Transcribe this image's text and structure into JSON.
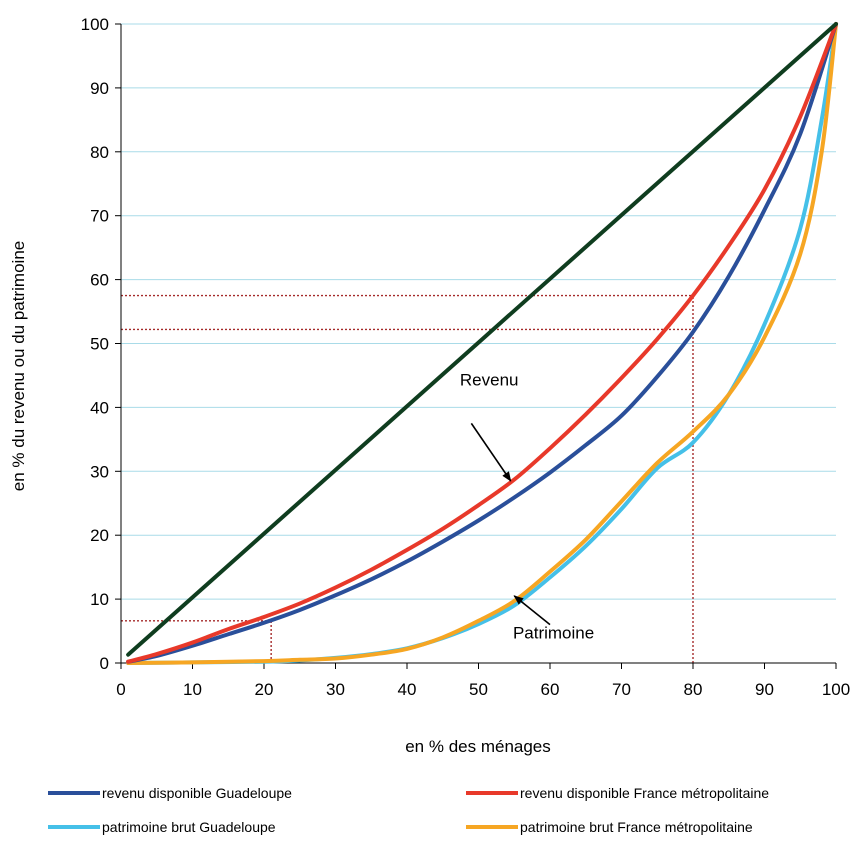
{
  "chart_data": {
    "type": "line",
    "title": "",
    "xlabel": "en % des ménages",
    "ylabel": "en % du revenu ou du patrimoine",
    "xlim": [
      0,
      100
    ],
    "ylim": [
      0,
      100
    ],
    "xticks": [
      0,
      10,
      20,
      30,
      40,
      50,
      60,
      70,
      80,
      90,
      100
    ],
    "yticks": [
      0,
      10,
      20,
      30,
      40,
      50,
      60,
      70,
      80,
      90,
      100
    ],
    "grid": "horizontal",
    "legend_position": "bottom",
    "series": [
      {
        "name": "",
        "color": "#0f3d1f",
        "x": [
          1,
          100
        ],
        "y": [
          1.3,
          100
        ]
      },
      {
        "name": "revenu disponible Guadeloupe",
        "color": "#2a4f9a",
        "x": [
          1,
          5,
          10,
          15,
          20,
          25,
          30,
          35,
          40,
          45,
          50,
          55,
          60,
          65,
          70,
          75,
          80,
          85,
          90,
          95,
          100
        ],
        "y": [
          0.2,
          1.1,
          2.7,
          4.5,
          6.3,
          8.3,
          10.6,
          13.1,
          15.9,
          19.0,
          22.3,
          25.9,
          29.8,
          34.1,
          38.7,
          44.8,
          51.8,
          60.5,
          70.9,
          82.8,
          100
        ]
      },
      {
        "name": "revenu disponible France métropolitaine",
        "color": "#e8392a",
        "x": [
          1,
          5,
          10,
          15,
          20,
          25,
          30,
          35,
          40,
          45,
          50,
          55,
          60,
          65,
          70,
          75,
          80,
          85,
          90,
          95,
          100
        ],
        "y": [
          0.2,
          1.4,
          3.2,
          5.3,
          7.2,
          9.3,
          11.8,
          14.6,
          17.7,
          21.0,
          24.7,
          28.7,
          33.6,
          38.9,
          44.6,
          50.7,
          57.5,
          65.3,
          74.1,
          85.5,
          100
        ]
      },
      {
        "name": "patrimoine brut Guadeloupe",
        "color": "#45c0e8",
        "x": [
          1,
          10,
          20,
          25,
          30,
          35,
          40,
          45,
          50,
          55,
          60,
          65,
          70,
          75,
          80,
          85,
          90,
          95,
          98,
          100
        ],
        "y": [
          0,
          0.1,
          0.2,
          0.4,
          0.8,
          1.4,
          2.3,
          3.9,
          6.1,
          9.0,
          13.4,
          18.3,
          24.1,
          30.5,
          34.5,
          42.0,
          53.0,
          68.0,
          85.0,
          100
        ]
      },
      {
        "name": "patrimoine brut France métropolitaine",
        "color": "#f6a623",
        "x": [
          1,
          10,
          20,
          25,
          30,
          35,
          40,
          45,
          50,
          55,
          60,
          65,
          70,
          75,
          80,
          85,
          90,
          95,
          98,
          100
        ],
        "y": [
          0,
          0.1,
          0.3,
          0.5,
          0.7,
          1.3,
          2.2,
          4.0,
          6.6,
          9.7,
          14.3,
          19.3,
          25.3,
          31.3,
          36.2,
          42.0,
          51.0,
          64.0,
          80.0,
          100
        ]
      }
    ],
    "reference_lines": [
      {
        "type": "h",
        "y": 57.5,
        "x_from": 0,
        "x_to": 80
      },
      {
        "type": "h",
        "y": 52.2,
        "x_from": 0,
        "x_to": 80
      },
      {
        "type": "h",
        "y": 6.6,
        "x_from": 0,
        "x_to": 21
      },
      {
        "type": "v",
        "x": 80,
        "y_from": 0,
        "y_to": 57.5
      },
      {
        "type": "v",
        "x": 21,
        "y_from": 0,
        "y_to": 6.6
      }
    ],
    "reference_line_color": "#a52a2a",
    "annotations": [
      {
        "text": "Revenu",
        "x": 51.5,
        "y": 43.4,
        "arrow_from": [
          49,
          37.5
        ],
        "arrow_to": [
          54.5,
          28.5
        ]
      },
      {
        "text": "Patrimoine",
        "x": 60.5,
        "y": 3.8,
        "arrow_from": [
          60,
          6
        ],
        "arrow_to": [
          55,
          10.5
        ]
      }
    ]
  }
}
